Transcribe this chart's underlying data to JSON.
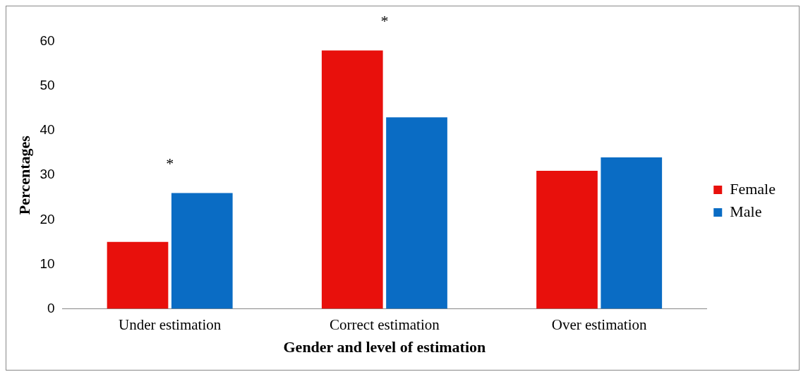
{
  "chart_data": {
    "type": "bar",
    "xlabel": "Gender and level of estimation",
    "ylabel": "Percentages",
    "categories": [
      "Under estimation",
      "Correct estimation",
      "Over estimation"
    ],
    "series": [
      {
        "name": "Female",
        "color": "#e8100c",
        "values": [
          15,
          58,
          31
        ]
      },
      {
        "name": "Male",
        "color": "#0a6cc4",
        "values": [
          26,
          43,
          34
        ]
      }
    ],
    "ylim": [
      0,
      60
    ],
    "yticks": [
      0,
      10,
      20,
      30,
      40,
      50,
      60
    ],
    "grid": false,
    "legend": "right",
    "annotations": [
      "*",
      "*"
    ]
  }
}
